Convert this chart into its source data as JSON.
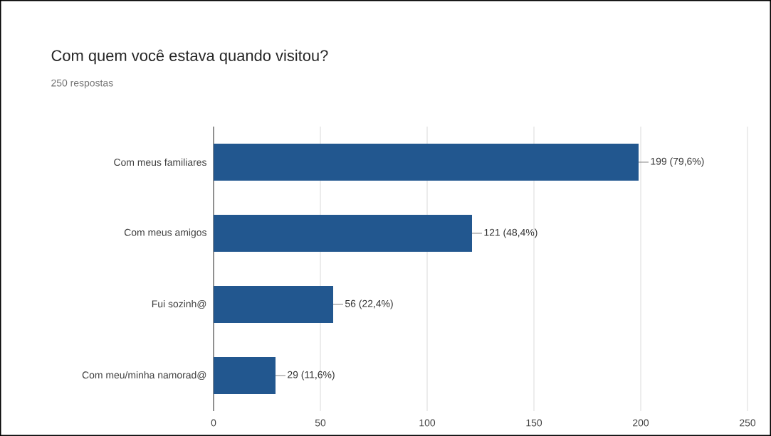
{
  "chart_data": {
    "type": "bar",
    "orientation": "horizontal",
    "title": "Com quem você estava quando visitou?",
    "subtitle": "250 respostas",
    "categories": [
      "Com meus familiares",
      "Com meus amigos",
      "Fui sozinh@",
      "Com meu/minha namorad@"
    ],
    "values": [
      199,
      121,
      56,
      29
    ],
    "value_labels": [
      "199 (79,6%)",
      "121 (48,4%)",
      "56 (22,4%)",
      "29 (11,6%)"
    ],
    "color": "#22578f",
    "xlim": [
      0,
      250
    ],
    "xticks": [
      0,
      50,
      100,
      150,
      200,
      250
    ],
    "grid": "x"
  }
}
